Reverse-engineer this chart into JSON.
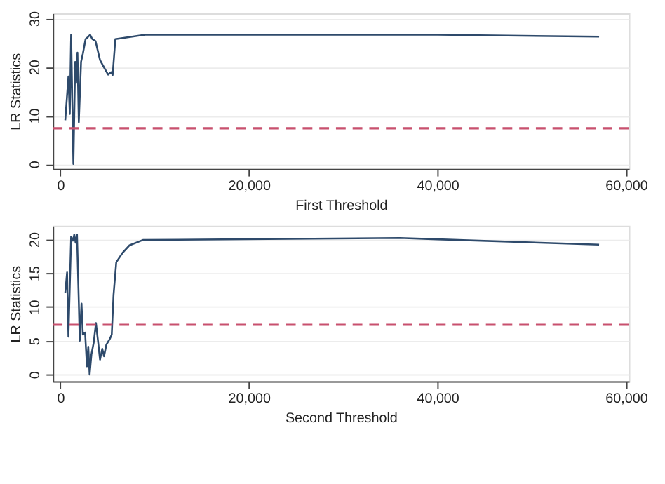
{
  "chart_data": [
    {
      "type": "line",
      "xlabel": "First Threshold",
      "ylabel": "LR Statistics",
      "xlim": [
        -800,
        60300
      ],
      "xticks": [
        {
          "value": 0,
          "label": "0"
        },
        {
          "value": 20000,
          "label": "20,000"
        },
        {
          "value": 40000,
          "label": "40,000"
        },
        {
          "value": 60000,
          "label": "60,000"
        }
      ],
      "ylim": [
        -1,
        31
      ],
      "yticks": [
        0,
        10,
        20,
        30
      ],
      "grid": "y",
      "series": [
        {
          "color": "#2e4a6b",
          "x": [
            526,
            861,
            1005,
            1148,
            1388,
            1579,
            1675,
            1818,
            1962,
            2201,
            2393,
            2680,
            2919,
            3158,
            3397,
            3732,
            4211,
            4689,
            5072,
            5407,
            5551,
            5838,
            8996,
            40000,
            57140
          ],
          "values": [
            9,
            18,
            10.3,
            26.6,
            0,
            21,
            16.7,
            22.9,
            8.6,
            21,
            22.7,
            25.7,
            26.1,
            26.6,
            25.7,
            25.3,
            21.4,
            19.7,
            18.4,
            18.9,
            18.3,
            25.7,
            26.6,
            26.6,
            26.2
          ]
        }
      ],
      "ref_lines": [
        {
          "axis": "y",
          "value": 7.35,
          "color": "#c8506e",
          "line_style": "dashed"
        }
      ]
    },
    {
      "type": "line",
      "xlabel": "Second Threshold",
      "ylabel": "LR Statistics",
      "xlim": [
        -800,
        60300
      ],
      "xticks": [
        {
          "value": 0,
          "label": "0"
        },
        {
          "value": 20000,
          "label": "20,000"
        },
        {
          "value": 40000,
          "label": "40,000"
        },
        {
          "value": 60000,
          "label": "60,000"
        }
      ],
      "ylim": [
        -1,
        22
      ],
      "yticks": [
        0,
        5,
        10,
        15,
        20
      ],
      "grid": "y",
      "series": [
        {
          "color": "#2e4a6b",
          "x": [
            526,
            718,
            861,
            1148,
            1340,
            1483,
            1627,
            1770,
            1962,
            2058,
            2249,
            2393,
            2632,
            2823,
            2967,
            3110,
            3302,
            3541,
            3780,
            4019,
            4211,
            4450,
            4641,
            4881,
            5264,
            5455,
            5647,
            5934,
            6604,
            7322,
            8757,
            36000,
            40000,
            57140
          ],
          "values": [
            12.1,
            15.1,
            5.6,
            20.4,
            19.8,
            20.7,
            19.5,
            20.7,
            10.7,
            5.0,
            10.5,
            5.9,
            6.2,
            1.2,
            4.1,
            0,
            3.0,
            4.7,
            7.6,
            4.7,
            2.2,
            3.8,
            2.7,
            4.4,
            5.3,
            5.9,
            11.8,
            16.6,
            18.0,
            19.1,
            19.9,
            20.2,
            20.0,
            19.2
          ]
        }
      ],
      "ref_lines": [
        {
          "axis": "y",
          "value": 7.35,
          "color": "#c8506e",
          "line_style": "dashed"
        }
      ]
    }
  ]
}
